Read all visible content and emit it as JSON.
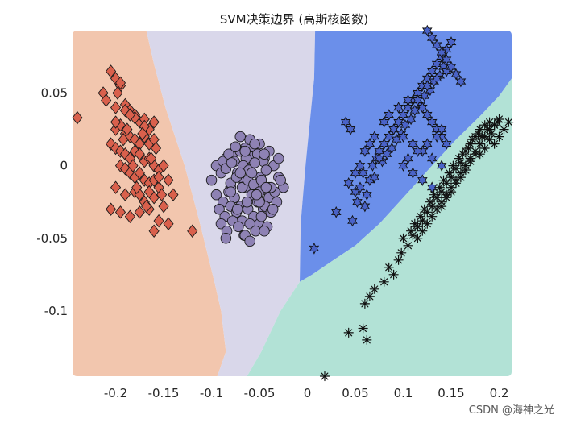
{
  "chart_data": {
    "type": "scatter",
    "title": "SVM决策边界 (高斯核函数)",
    "xlabel": "",
    "ylabel": "",
    "xlim": [
      -0.245,
      0.213
    ],
    "ylim": [
      -0.145,
      0.093
    ],
    "x_ticks": [
      -0.2,
      -0.15,
      -0.1,
      -0.05,
      0,
      0.05,
      0.1,
      0.15,
      0.2
    ],
    "x_tick_labels": [
      "-0.2",
      "-0.15",
      "-0.1",
      "-0.05",
      "0",
      "0.05",
      "0.1",
      "0.15",
      "0.2"
    ],
    "y_ticks": [
      0.05,
      0,
      -0.05,
      -0.1
    ],
    "y_tick_labels": [
      "0.05",
      "0",
      "-0.05",
      "-0.1"
    ],
    "grid": false,
    "legend": "none",
    "regions": [
      {
        "color": "#f2c6ae",
        "polygon": [
          [
            -0.245,
            0.093
          ],
          [
            -0.168,
            0.093
          ],
          [
            -0.16,
            0.07
          ],
          [
            -0.148,
            0.04
          ],
          [
            -0.128,
            0.0
          ],
          [
            -0.112,
            -0.04
          ],
          [
            -0.097,
            -0.08
          ],
          [
            -0.09,
            -0.1
          ],
          [
            -0.085,
            -0.128
          ],
          [
            -0.094,
            -0.145
          ],
          [
            -0.245,
            -0.145
          ]
        ]
      },
      {
        "color": "#d9d7ea",
        "polygon": [
          [
            -0.168,
            0.093
          ],
          [
            0.008,
            0.093
          ],
          [
            0.007,
            0.06
          ],
          [
            0.004,
            0.04
          ],
          [
            -0.002,
            0.0
          ],
          [
            -0.007,
            -0.04
          ],
          [
            -0.008,
            -0.08
          ],
          [
            -0.028,
            -0.1
          ],
          [
            -0.048,
            -0.128
          ],
          [
            -0.063,
            -0.145
          ],
          [
            -0.094,
            -0.145
          ],
          [
            -0.085,
            -0.128
          ],
          [
            -0.09,
            -0.1
          ],
          [
            -0.097,
            -0.08
          ],
          [
            -0.112,
            -0.04
          ],
          [
            -0.128,
            0.0
          ],
          [
            -0.148,
            0.04
          ],
          [
            -0.16,
            0.07
          ]
        ]
      },
      {
        "color": "#6b8fea",
        "polygon": [
          [
            0.008,
            0.093
          ],
          [
            0.213,
            0.093
          ],
          [
            0.213,
            0.06
          ],
          [
            0.2,
            0.048
          ],
          [
            0.18,
            0.034
          ],
          [
            0.155,
            0.018
          ],
          [
            0.13,
            0.0
          ],
          [
            0.1,
            -0.022
          ],
          [
            0.075,
            -0.04
          ],
          [
            0.05,
            -0.055
          ],
          [
            0.025,
            -0.066
          ],
          [
            0.005,
            -0.075
          ],
          [
            -0.008,
            -0.08
          ],
          [
            -0.007,
            -0.04
          ],
          [
            -0.002,
            0.0
          ],
          [
            0.004,
            0.04
          ],
          [
            0.007,
            0.06
          ]
        ]
      },
      {
        "color": "#b2e2d6",
        "polygon": [
          [
            -0.008,
            -0.08
          ],
          [
            0.005,
            -0.075
          ],
          [
            0.025,
            -0.066
          ],
          [
            0.05,
            -0.055
          ],
          [
            0.075,
            -0.04
          ],
          [
            0.1,
            -0.022
          ],
          [
            0.13,
            0.0
          ],
          [
            0.155,
            0.018
          ],
          [
            0.18,
            0.034
          ],
          [
            0.2,
            0.048
          ],
          [
            0.213,
            0.06
          ],
          [
            0.213,
            -0.145
          ],
          [
            -0.063,
            -0.145
          ],
          [
            -0.048,
            -0.128
          ],
          [
            -0.028,
            -0.1
          ]
        ]
      }
    ],
    "series": [
      {
        "marker": "diamond",
        "color": "#d9604c",
        "x": [
          -0.24,
          -0.213,
          -0.205,
          -0.2,
          -0.195,
          -0.21,
          -0.2,
          -0.19,
          -0.185,
          -0.18,
          -0.175,
          -0.17,
          -0.165,
          -0.2,
          -0.195,
          -0.19,
          -0.185,
          -0.18,
          -0.175,
          -0.17,
          -0.165,
          -0.16,
          -0.205,
          -0.2,
          -0.195,
          -0.19,
          -0.185,
          -0.18,
          -0.175,
          -0.17,
          -0.165,
          -0.16,
          -0.155,
          -0.195,
          -0.19,
          -0.185,
          -0.18,
          -0.175,
          -0.17,
          -0.165,
          -0.16,
          -0.155,
          -0.2,
          -0.19,
          -0.18,
          -0.17,
          -0.16,
          -0.15,
          -0.205,
          -0.195,
          -0.185,
          -0.175,
          -0.165,
          -0.155,
          -0.145,
          -0.2,
          -0.19,
          -0.18,
          -0.17,
          -0.16,
          -0.15,
          -0.175,
          -0.165,
          -0.155,
          -0.195,
          -0.185,
          -0.145,
          -0.16,
          -0.14,
          -0.12,
          -0.198,
          -0.188,
          -0.172,
          -0.163,
          -0.158,
          -0.178,
          -0.168,
          -0.152,
          -0.182,
          -0.192
        ],
        "y": [
          0.033,
          0.05,
          0.065,
          0.06,
          0.055,
          0.045,
          0.04,
          0.042,
          0.038,
          0.035,
          0.03,
          0.032,
          0.025,
          0.025,
          0.028,
          0.022,
          0.02,
          0.018,
          0.015,
          0.02,
          0.015,
          0.018,
          0.015,
          0.012,
          0.01,
          0.008,
          0.005,
          0.01,
          0.008,
          0.003,
          0.005,
          0.0,
          -0.003,
          0.0,
          -0.002,
          -0.005,
          -0.008,
          -0.005,
          -0.01,
          -0.012,
          -0.01,
          -0.015,
          -0.015,
          -0.02,
          -0.018,
          -0.025,
          -0.022,
          -0.028,
          -0.03,
          -0.032,
          -0.035,
          -0.02,
          -0.03,
          -0.038,
          -0.04,
          0.03,
          0.038,
          0.033,
          0.027,
          0.03,
          0.0,
          -0.032,
          -0.018,
          -0.008,
          0.057,
          0.035,
          -0.01,
          -0.045,
          -0.02,
          -0.045,
          0.05,
          0.025,
          0.022,
          0.005,
          0.012,
          -0.015,
          -0.028,
          -0.02,
          0.0,
          0.018
        ]
      },
      {
        "marker": "circle",
        "color": "#8e82b4",
        "x": [
          -0.1,
          -0.095,
          -0.09,
          -0.085,
          -0.08,
          -0.075,
          -0.07,
          -0.065,
          -0.06,
          -0.055,
          -0.05,
          -0.045,
          -0.04,
          -0.035,
          -0.03,
          -0.025,
          -0.095,
          -0.088,
          -0.082,
          -0.076,
          -0.07,
          -0.064,
          -0.058,
          -0.052,
          -0.046,
          -0.04,
          -0.034,
          -0.028,
          -0.092,
          -0.086,
          -0.08,
          -0.074,
          -0.068,
          -0.062,
          -0.056,
          -0.05,
          -0.044,
          -0.038,
          -0.032,
          -0.09,
          -0.084,
          -0.078,
          -0.072,
          -0.066,
          -0.06,
          -0.054,
          -0.048,
          -0.042,
          -0.036,
          -0.088,
          -0.082,
          -0.076,
          -0.07,
          -0.064,
          -0.058,
          -0.052,
          -0.046,
          -0.04,
          -0.085,
          -0.079,
          -0.073,
          -0.067,
          -0.061,
          -0.055,
          -0.049,
          -0.043,
          -0.08,
          -0.074,
          -0.068,
          -0.062,
          -0.056,
          -0.05,
          -0.07,
          -0.06,
          -0.05,
          -0.075,
          -0.065,
          -0.055,
          -0.045,
          -0.085,
          -0.065,
          -0.045,
          -0.06,
          -0.04,
          -0.07,
          -0.08,
          -0.05,
          -0.03,
          -0.058,
          -0.048,
          -0.038,
          -0.073,
          -0.063,
          -0.053,
          -0.043
        ],
        "y": [
          -0.01,
          0.0,
          -0.005,
          0.005,
          -0.015,
          0.01,
          -0.008,
          0.012,
          -0.002,
          0.008,
          -0.012,
          0.005,
          -0.018,
          0.0,
          -0.008,
          -0.015,
          -0.02,
          -0.025,
          -0.018,
          -0.022,
          -0.028,
          -0.015,
          -0.02,
          -0.025,
          -0.03,
          -0.022,
          -0.018,
          -0.01,
          -0.03,
          -0.035,
          -0.028,
          -0.032,
          -0.038,
          -0.03,
          -0.035,
          -0.04,
          -0.028,
          -0.032,
          -0.025,
          -0.04,
          -0.045,
          -0.038,
          -0.042,
          -0.048,
          -0.04,
          -0.045,
          -0.035,
          -0.042,
          -0.03,
          0.003,
          0.008,
          0.003,
          0.01,
          0.005,
          0.013,
          0.008,
          0.003,
          0.01,
          -0.002,
          0.002,
          -0.005,
          0.0,
          -0.003,
          0.002,
          -0.008,
          -0.003,
          -0.012,
          -0.008,
          -0.015,
          -0.01,
          -0.013,
          -0.018,
          0.02,
          0.018,
          0.015,
          0.013,
          0.01,
          0.015,
          0.008,
          -0.05,
          -0.048,
          -0.045,
          -0.052,
          -0.015,
          -0.005,
          -0.018,
          -0.025,
          0.005,
          -0.005,
          -0.01,
          -0.015,
          -0.03,
          -0.025,
          -0.02,
          -0.015
        ]
      },
      {
        "marker": "hexagram",
        "color": "#4a63c8",
        "x": [
          0.007,
          0.03,
          0.043,
          0.047,
          0.05,
          0.052,
          0.055,
          0.058,
          0.06,
          0.062,
          0.065,
          0.068,
          0.07,
          0.072,
          0.075,
          0.078,
          0.08,
          0.083,
          0.085,
          0.088,
          0.09,
          0.093,
          0.095,
          0.098,
          0.1,
          0.102,
          0.105,
          0.108,
          0.11,
          0.112,
          0.115,
          0.118,
          0.12,
          0.122,
          0.125,
          0.128,
          0.13,
          0.132,
          0.135,
          0.138,
          0.14,
          0.142,
          0.145,
          0.08,
          0.085,
          0.09,
          0.095,
          0.1,
          0.105,
          0.11,
          0.115,
          0.12,
          0.125,
          0.13,
          0.135,
          0.14,
          0.145,
          0.15,
          0.125,
          0.13,
          0.135,
          0.14,
          0.145,
          0.15,
          0.155,
          0.16,
          0.115,
          0.12,
          0.125,
          0.13,
          0.135,
          0.14,
          0.145,
          0.1,
          0.105,
          0.11,
          0.115,
          0.12,
          0.125,
          0.13,
          0.135,
          0.14,
          0.06,
          0.065,
          0.07,
          0.075,
          0.055,
          0.05,
          0.045,
          0.04
        ],
        "y": [
          -0.057,
          -0.032,
          -0.012,
          -0.038,
          -0.018,
          -0.025,
          -0.015,
          -0.005,
          -0.028,
          -0.02,
          -0.01,
          0.0,
          -0.008,
          0.005,
          0.01,
          0.003,
          0.015,
          0.008,
          0.02,
          0.012,
          0.025,
          0.018,
          0.03,
          0.022,
          0.035,
          0.028,
          0.04,
          0.032,
          0.045,
          0.038,
          0.05,
          0.042,
          0.055,
          0.048,
          0.06,
          0.052,
          0.065,
          0.058,
          0.07,
          0.062,
          0.075,
          0.068,
          0.08,
          0.03,
          0.035,
          0.025,
          0.04,
          0.02,
          0.045,
          0.015,
          0.05,
          0.01,
          0.055,
          0.005,
          0.06,
          0.0,
          0.065,
          0.085,
          0.093,
          0.088,
          0.083,
          0.078,
          0.073,
          0.068,
          0.063,
          0.058,
          0.045,
          0.04,
          0.035,
          0.03,
          0.025,
          0.02,
          0.015,
          0.0,
          0.005,
          -0.005,
          0.01,
          -0.01,
          0.015,
          -0.015,
          0.02,
          0.025,
          0.01,
          0.015,
          0.02,
          0.005,
          0.0,
          -0.005,
          0.025,
          0.03
        ]
      },
      {
        "marker": "asterisk",
        "color": "#111111",
        "x": [
          0.018,
          0.043,
          0.058,
          0.062,
          0.06,
          0.065,
          0.07,
          0.08,
          0.085,
          0.09,
          0.095,
          0.098,
          0.1,
          0.105,
          0.108,
          0.11,
          0.112,
          0.115,
          0.118,
          0.12,
          0.122,
          0.125,
          0.128,
          0.13,
          0.132,
          0.135,
          0.138,
          0.14,
          0.142,
          0.145,
          0.148,
          0.15,
          0.152,
          0.155,
          0.158,
          0.16,
          0.162,
          0.165,
          0.168,
          0.17,
          0.172,
          0.175,
          0.178,
          0.18,
          0.182,
          0.185,
          0.188,
          0.19,
          0.192,
          0.195,
          0.198,
          0.2,
          0.205,
          0.21,
          0.115,
          0.12,
          0.125,
          0.13,
          0.135,
          0.14,
          0.145,
          0.15,
          0.155,
          0.16,
          0.165,
          0.17,
          0.175,
          0.18,
          0.185,
          0.19,
          0.195,
          0.2,
          0.18,
          0.185,
          0.19,
          0.195,
          0.17,
          0.175,
          0.165,
          0.16,
          0.155,
          0.15,
          0.145,
          0.14
        ],
        "y": [
          -0.145,
          -0.115,
          -0.112,
          -0.12,
          -0.095,
          -0.09,
          -0.085,
          -0.08,
          -0.07,
          -0.075,
          -0.065,
          -0.06,
          -0.05,
          -0.055,
          -0.045,
          -0.048,
          -0.04,
          -0.042,
          -0.035,
          -0.038,
          -0.03,
          -0.032,
          -0.025,
          -0.028,
          -0.02,
          -0.022,
          -0.015,
          -0.018,
          -0.01,
          -0.012,
          -0.005,
          -0.008,
          0.0,
          -0.002,
          0.005,
          0.002,
          0.008,
          0.01,
          0.012,
          0.015,
          0.018,
          0.02,
          0.022,
          0.025,
          0.02,
          0.028,
          0.025,
          0.03,
          0.022,
          0.028,
          0.03,
          0.032,
          0.025,
          0.03,
          -0.05,
          -0.045,
          -0.04,
          -0.035,
          -0.03,
          -0.025,
          -0.02,
          -0.015,
          -0.01,
          -0.005,
          0.0,
          0.005,
          0.01,
          0.015,
          0.02,
          0.025,
          0.028,
          0.02,
          0.008,
          0.012,
          0.018,
          0.015,
          0.003,
          0.008,
          -0.003,
          -0.008,
          -0.012,
          -0.018,
          -0.022,
          -0.028
        ]
      }
    ]
  },
  "watermark": "CSDN @海神之光"
}
